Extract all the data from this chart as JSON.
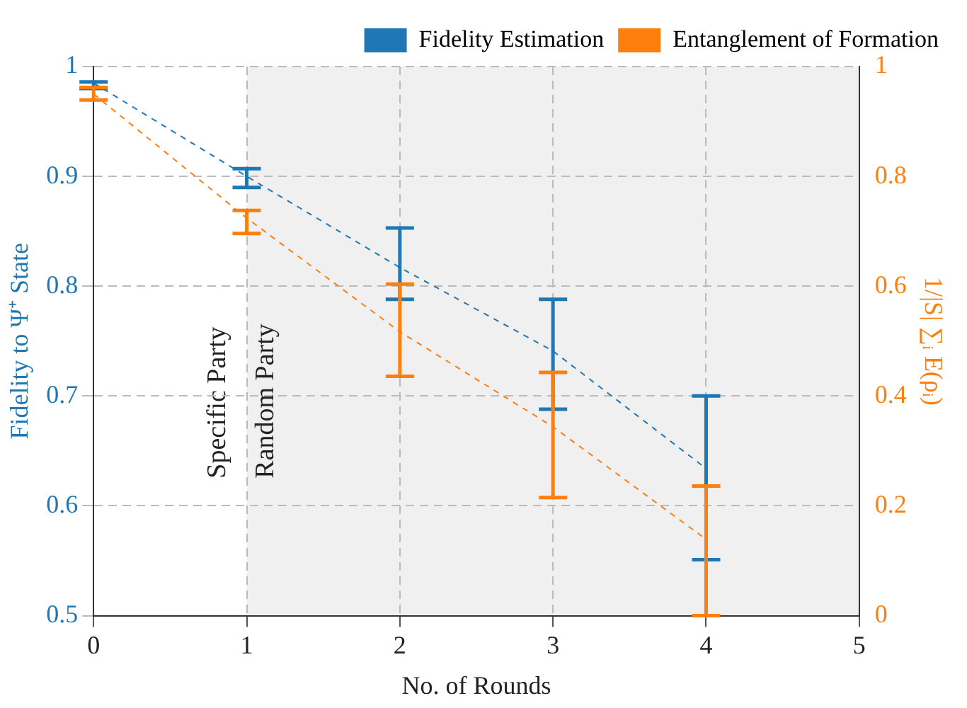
{
  "chart_data": {
    "type": "line",
    "xlabel": "No. of Rounds",
    "ylabel": "Fidelity to Ψ⁺ State",
    "y2label": "1/|S| ∑ᵢ E(ρᵢ)",
    "x": [
      0,
      1,
      2,
      3,
      4
    ],
    "series": [
      {
        "name": "Fidelity Estimation",
        "color": "#1f77b4",
        "values": [
          0.985,
          0.9,
          0.817,
          0.741,
          0.634
        ],
        "errors": [
          [
            0.98,
            0.986
          ],
          [
            0.89,
            0.907
          ],
          [
            0.788,
            0.853
          ],
          [
            0.688,
            0.788
          ],
          [
            0.551,
            0.7
          ]
        ]
      },
      {
        "name": "Entanglement of Formation",
        "color": "#ff7f0e",
        "axis": "y2",
        "values": [
          0.95,
          0.724,
          0.517,
          0.344,
          0.139
        ],
        "errors": [
          [
            0.939,
            0.962
          ],
          [
            0.696,
            0.738
          ],
          [
            0.436,
            0.604
          ],
          [
            0.215,
            0.443
          ],
          [
            0,
            0.236
          ]
        ]
      }
    ],
    "xlim": [
      0,
      5
    ],
    "xticks": [
      0,
      1,
      2,
      3,
      4,
      5
    ],
    "ylim": [
      0.5,
      1
    ],
    "yticks": [
      0.5,
      0.6,
      0.7,
      0.8,
      0.9,
      1
    ],
    "y2lim": [
      0,
      1
    ],
    "y2ticks": [
      0,
      0.2,
      0.4,
      0.6,
      0.8,
      1
    ],
    "bands": [
      {
        "axis": "x",
        "from": 1,
        "to": 5,
        "label": "Random Party",
        "color": "#f0f0f0"
      }
    ],
    "annotations": [
      "Specific Party"
    ],
    "grid": true,
    "legend": "top right",
    "marker": "none",
    "line_style": "dashed"
  }
}
